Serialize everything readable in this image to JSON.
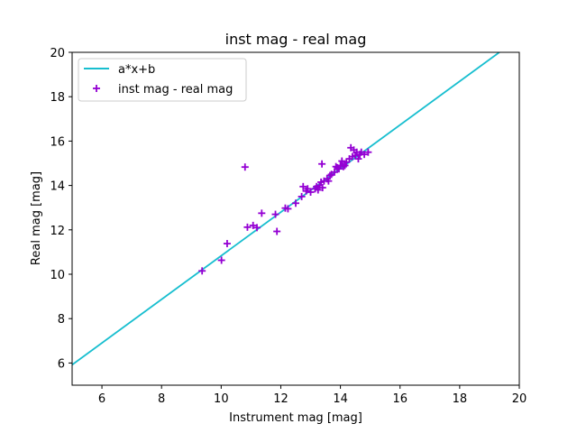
{
  "chart_data": {
    "type": "scatter",
    "title": "inst mag - real mag",
    "xlabel": "Instrument mag [mag]",
    "ylabel": "Real mag [mag]",
    "xlim": [
      5,
      20
    ],
    "ylim": [
      5,
      20
    ],
    "xticks": [
      6,
      8,
      10,
      12,
      14,
      16,
      18,
      20
    ],
    "yticks": [
      6,
      8,
      10,
      12,
      14,
      16,
      18,
      20
    ],
    "grid": false,
    "legend_position": "top-left",
    "series": [
      {
        "name": "a*x+b",
        "kind": "line",
        "color": "#17becf",
        "x": [
          5,
          19.33
        ],
        "y": [
          5.92,
          20.0
        ]
      },
      {
        "name": "inst mag - real mag",
        "kind": "scatter",
        "marker": "plus",
        "color": "#9400d3",
        "x": [
          9.36,
          10.01,
          10.2,
          10.8,
          10.88,
          11.07,
          11.2,
          11.36,
          11.82,
          11.87,
          12.15,
          12.24,
          12.5,
          12.7,
          12.75,
          12.85,
          12.9,
          13.0,
          13.15,
          13.2,
          13.25,
          13.3,
          13.35,
          13.4,
          13.45,
          13.55,
          13.6,
          13.65,
          13.7,
          13.8,
          13.85,
          13.9,
          13.95,
          14.0,
          14.05,
          14.1,
          14.15,
          14.2,
          14.3,
          14.35,
          14.4,
          14.45,
          14.5,
          14.55,
          14.6,
          14.65,
          14.7,
          14.8,
          14.93,
          13.38
        ],
        "y": [
          10.15,
          10.63,
          11.38,
          14.83,
          12.12,
          12.2,
          12.1,
          12.75,
          12.7,
          11.93,
          12.98,
          12.95,
          13.2,
          13.5,
          13.95,
          13.75,
          13.85,
          13.7,
          13.85,
          13.95,
          13.8,
          14.0,
          14.15,
          13.9,
          14.2,
          14.3,
          14.2,
          14.45,
          14.5,
          14.6,
          14.85,
          14.8,
          14.75,
          14.9,
          15.1,
          14.85,
          14.9,
          15.05,
          15.2,
          15.7,
          15.3,
          15.6,
          15.35,
          15.5,
          15.2,
          15.4,
          15.5,
          15.4,
          15.5,
          14.97
        ]
      }
    ]
  }
}
